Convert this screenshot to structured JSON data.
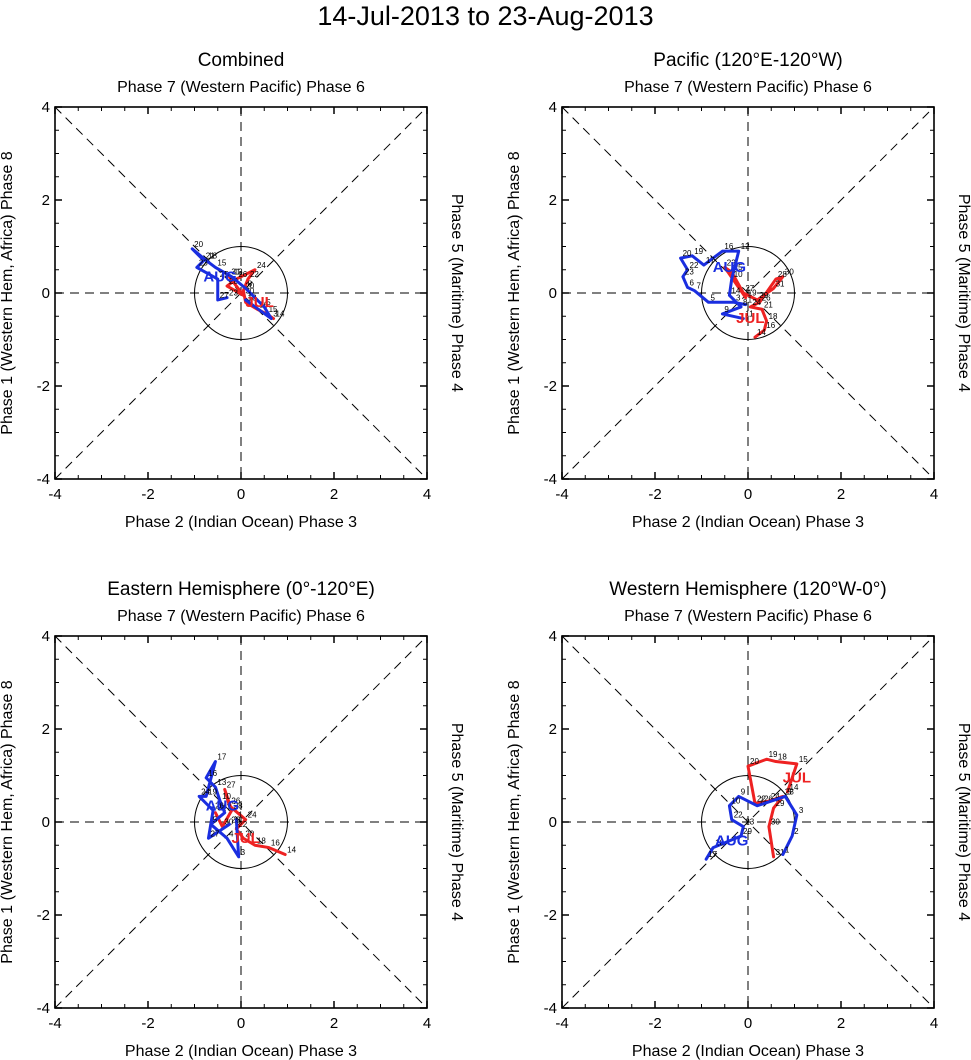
{
  "title": "14-Jul-2013 to 23-Aug-2013",
  "colors": {
    "jul": "#ee2222",
    "aug": "#1a2ee0",
    "axis": "#000000"
  },
  "axis_labels": {
    "top": "Phase 7 (Western Pacific) Phase 6",
    "bottom": "Phase 2 (Indian Ocean) Phase 3",
    "left": "Phase 1 (Western Hem, Africa) Phase 8",
    "right": "Phase 5 (Maritime) Phase 4"
  },
  "chart_data": [
    {
      "type": "line",
      "title": "Combined",
      "xlim": [
        -4,
        4
      ],
      "ylim": [
        -4,
        4
      ],
      "xticks": [
        "-4",
        "-2",
        "0",
        "2",
        "4"
      ],
      "yticks": [
        "-4",
        "-2",
        "0",
        "2",
        "4"
      ],
      "month_labels": [
        {
          "text": "JUL",
          "x": 0.4,
          "y": -0.3,
          "series": "jul"
        },
        {
          "text": "AUG",
          "x": -0.45,
          "y": 0.25,
          "series": "aug"
        }
      ],
      "series": [
        {
          "name": "jul",
          "points": [
            {
              "d": "14",
              "x": 0.7,
              "y": -0.55
            },
            {
              "d": "15",
              "x": 0.55,
              "y": -0.45
            },
            {
              "d": "16",
              "x": 0.35,
              "y": -0.35
            },
            {
              "d": "18",
              "x": 0.1,
              "y": -0.2
            },
            {
              "d": "20",
              "x": 0.05,
              "y": 0.05
            },
            {
              "d": "22",
              "x": 0.15,
              "y": 0.3
            },
            {
              "d": "24",
              "x": 0.3,
              "y": 0.5
            },
            {
              "d": "26",
              "x": -0.1,
              "y": 0.3
            },
            {
              "d": "28",
              "x": -0.3,
              "y": 0.15
            },
            {
              "d": "30",
              "x": 0.05,
              "y": -0.05
            },
            {
              "d": "31",
              "x": -0.25,
              "y": 0.35
            }
          ]
        },
        {
          "name": "aug",
          "points": [
            {
              "d": "1",
              "x": 0.1,
              "y": -0.15
            },
            {
              "d": "3",
              "x": 0.65,
              "y": -0.55
            },
            {
              "d": "5",
              "x": 0.5,
              "y": -0.3
            },
            {
              "d": "8",
              "x": 0.1,
              "y": 0.1
            },
            {
              "d": "12",
              "x": -0.2,
              "y": 0.35
            },
            {
              "d": "15",
              "x": -0.55,
              "y": 0.55
            },
            {
              "d": "18",
              "x": -0.75,
              "y": 0.7
            },
            {
              "d": "20",
              "x": -1.05,
              "y": 0.95
            },
            {
              "d": "21",
              "x": -0.8,
              "y": 0.7
            },
            {
              "d": "23",
              "x": -0.95,
              "y": 0.55
            },
            {
              "d": "25",
              "x": -0.5,
              "y": 0.3
            },
            {
              "d": "27",
              "x": -0.5,
              "y": -0.15
            },
            {
              "d": "23",
              "x": -0.3,
              "y": -0.1
            }
          ]
        }
      ]
    },
    {
      "type": "line",
      "title": "Pacific (120°E-120°W)",
      "xlim": [
        -4,
        4
      ],
      "ylim": [
        -4,
        4
      ],
      "xticks": [
        "-4",
        "-2",
        "0",
        "2",
        "4"
      ],
      "yticks": [
        "-4",
        "-2",
        "0",
        "2",
        "4"
      ],
      "month_labels": [
        {
          "text": "JUL",
          "x": 0.05,
          "y": -0.65,
          "series": "jul"
        },
        {
          "text": "AUG",
          "x": -0.4,
          "y": 0.45,
          "series": "aug"
        }
      ],
      "series": [
        {
          "name": "jul",
          "points": [
            {
              "d": "14",
              "x": 0.15,
              "y": -0.95
            },
            {
              "d": "16",
              "x": 0.35,
              "y": -0.8
            },
            {
              "d": "18",
              "x": 0.4,
              "y": -0.6
            },
            {
              "d": "21",
              "x": 0.3,
              "y": -0.35
            },
            {
              "d": "24",
              "x": 0.05,
              "y": -0.3
            },
            {
              "d": "26",
              "x": 0.25,
              "y": -0.2
            },
            {
              "d": "28",
              "x": 0.6,
              "y": 0.3
            },
            {
              "d": "30",
              "x": 0.75,
              "y": 0.35
            },
            {
              "d": "31",
              "x": 0.55,
              "y": 0.1
            },
            {
              "d": "29",
              "x": 0.2,
              "y": -0.15
            },
            {
              "d": "27",
              "x": -0.1,
              "y": 0.0
            },
            {
              "d": "25",
              "x": -0.35,
              "y": 0.45
            },
            {
              "d": "22",
              "x": -0.5,
              "y": 0.55
            },
            {
              "d": "19",
              "x": -0.05,
              "y": -0.1
            }
          ]
        },
        {
          "name": "aug",
          "points": [
            {
              "d": "1",
              "x": -0.05,
              "y": -0.25
            },
            {
              "d": "3",
              "x": -0.3,
              "y": -0.2
            },
            {
              "d": "5",
              "x": -0.85,
              "y": -0.2
            },
            {
              "d": "7",
              "x": -1.15,
              "y": 0.05
            },
            {
              "d": "6",
              "x": -1.3,
              "y": 0.12
            },
            {
              "d": "23",
              "x": -1.4,
              "y": 0.35
            },
            {
              "d": "22",
              "x": -1.3,
              "y": 0.5
            },
            {
              "d": "20",
              "x": -1.45,
              "y": 0.75
            },
            {
              "d": "19",
              "x": -1.2,
              "y": 0.8
            },
            {
              "d": "17",
              "x": -0.95,
              "y": 0.6
            },
            {
              "d": "16",
              "x": -0.55,
              "y": 0.9
            },
            {
              "d": "12",
              "x": -0.2,
              "y": 0.9
            },
            {
              "d": "10",
              "x": -0.35,
              "y": 0.3
            },
            {
              "d": "14",
              "x": -0.4,
              "y": -0.05
            },
            {
              "d": "8",
              "x": -0.15,
              "y": -0.3
            },
            {
              "d": "9",
              "x": -0.55,
              "y": -0.45
            },
            {
              "d": "11",
              "x": -0.1,
              "y": -0.55
            }
          ]
        }
      ]
    },
    {
      "type": "line",
      "title": "Eastern Hemisphere (0°-120°E)",
      "xlim": [
        -4,
        4
      ],
      "ylim": [
        -4,
        4
      ],
      "xticks": [
        "-4",
        "-2",
        "0",
        "2",
        "4"
      ],
      "yticks": [
        "-4",
        "-2",
        "0",
        "2",
        "4"
      ],
      "month_labels": [
        {
          "text": "JUL",
          "x": 0.1,
          "y": -0.45,
          "series": "jul"
        },
        {
          "text": "AUG",
          "x": -0.4,
          "y": 0.25,
          "series": "aug"
        }
      ],
      "series": [
        {
          "name": "jul",
          "points": [
            {
              "d": "14",
              "x": 0.95,
              "y": -0.7
            },
            {
              "d": "16",
              "x": 0.6,
              "y": -0.55
            },
            {
              "d": "18",
              "x": 0.3,
              "y": -0.5
            },
            {
              "d": "20",
              "x": 0.05,
              "y": -0.35
            },
            {
              "d": "22",
              "x": -0.1,
              "y": -0.15
            },
            {
              "d": "24",
              "x": 0.1,
              "y": 0.05
            },
            {
              "d": "26",
              "x": -0.25,
              "y": 0.35
            },
            {
              "d": "27",
              "x": -0.35,
              "y": 0.7
            },
            {
              "d": "28",
              "x": -0.2,
              "y": 0.25
            },
            {
              "d": "30",
              "x": -0.4,
              "y": -0.1
            },
            {
              "d": "31",
              "x": -0.55,
              "y": 0.2
            }
          ]
        },
        {
          "name": "aug",
          "points": [
            {
              "d": "1",
              "x": -0.1,
              "y": 0.05
            },
            {
              "d": "3",
              "x": -0.05,
              "y": -0.75
            },
            {
              "d": "4",
              "x": -0.3,
              "y": -0.35
            },
            {
              "d": "5",
              "x": -0.65,
              "y": -0.05
            },
            {
              "d": "7",
              "x": -0.35,
              "y": 0.2
            },
            {
              "d": "10",
              "x": -0.45,
              "y": 0.45
            },
            {
              "d": "13",
              "x": -0.55,
              "y": 0.75
            },
            {
              "d": "16",
              "x": -0.75,
              "y": 0.95
            },
            {
              "d": "17",
              "x": -0.55,
              "y": 1.3
            },
            {
              "d": "19",
              "x": -0.75,
              "y": 0.55
            },
            {
              "d": "24",
              "x": -0.9,
              "y": 0.55
            },
            {
              "d": "26",
              "x": -0.6,
              "y": 0.25
            },
            {
              "d": "27",
              "x": -0.7,
              "y": -0.35
            },
            {
              "d": "29",
              "x": -0.25,
              "y": -0.05
            }
          ]
        }
      ]
    },
    {
      "type": "line",
      "title": "Western Hemisphere (120°W-0°)",
      "xlim": [
        -4,
        4
      ],
      "ylim": [
        -4,
        4
      ],
      "xticks": [
        "-4",
        "-2",
        "0",
        "2",
        "4"
      ],
      "yticks": [
        "-4",
        "-2",
        "0",
        "2",
        "4"
      ],
      "month_labels": [
        {
          "text": "JUL",
          "x": 1.05,
          "y": 0.85,
          "series": "jul"
        },
        {
          "text": "AUG",
          "x": -0.35,
          "y": -0.5,
          "series": "aug"
        }
      ],
      "series": [
        {
          "name": "jul",
          "points": [
            {
              "d": "14",
              "x": 0.85,
              "y": 0.65
            },
            {
              "d": "15",
              "x": 1.05,
              "y": 1.25
            },
            {
              "d": "18",
              "x": 0.6,
              "y": 1.3
            },
            {
              "d": "19",
              "x": 0.4,
              "y": 1.35
            },
            {
              "d": "20",
              "x": 0.0,
              "y": 1.2
            },
            {
              "d": "22",
              "x": 0.15,
              "y": 0.4
            },
            {
              "d": "24",
              "x": 0.45,
              "y": 0.45
            },
            {
              "d": "26",
              "x": 0.3,
              "y": 0.4
            },
            {
              "d": "28",
              "x": 0.75,
              "y": 0.55
            },
            {
              "d": "29",
              "x": 0.55,
              "y": 0.3
            },
            {
              "d": "30",
              "x": 0.45,
              "y": -0.1
            },
            {
              "d": "31",
              "x": 0.55,
              "y": -0.75
            }
          ]
        },
        {
          "name": "aug",
          "points": [
            {
              "d": "1",
              "x": 0.75,
              "y": -0.7
            },
            {
              "d": "2",
              "x": 0.95,
              "y": -0.3
            },
            {
              "d": "3",
              "x": 1.05,
              "y": 0.15
            },
            {
              "d": "5",
              "x": 0.8,
              "y": 0.55
            },
            {
              "d": "7",
              "x": 0.2,
              "y": 0.35
            },
            {
              "d": "9",
              "x": -0.2,
              "y": 0.55
            },
            {
              "d": "10",
              "x": -0.4,
              "y": 0.35
            },
            {
              "d": "22",
              "x": -0.35,
              "y": 0.05
            },
            {
              "d": "23",
              "x": -0.1,
              "y": -0.1
            },
            {
              "d": "29",
              "x": -0.15,
              "y": -0.3
            },
            {
              "d": "18",
              "x": -0.75,
              "y": -0.55
            },
            {
              "d": "17",
              "x": -0.9,
              "y": -0.8
            }
          ]
        }
      ]
    }
  ]
}
